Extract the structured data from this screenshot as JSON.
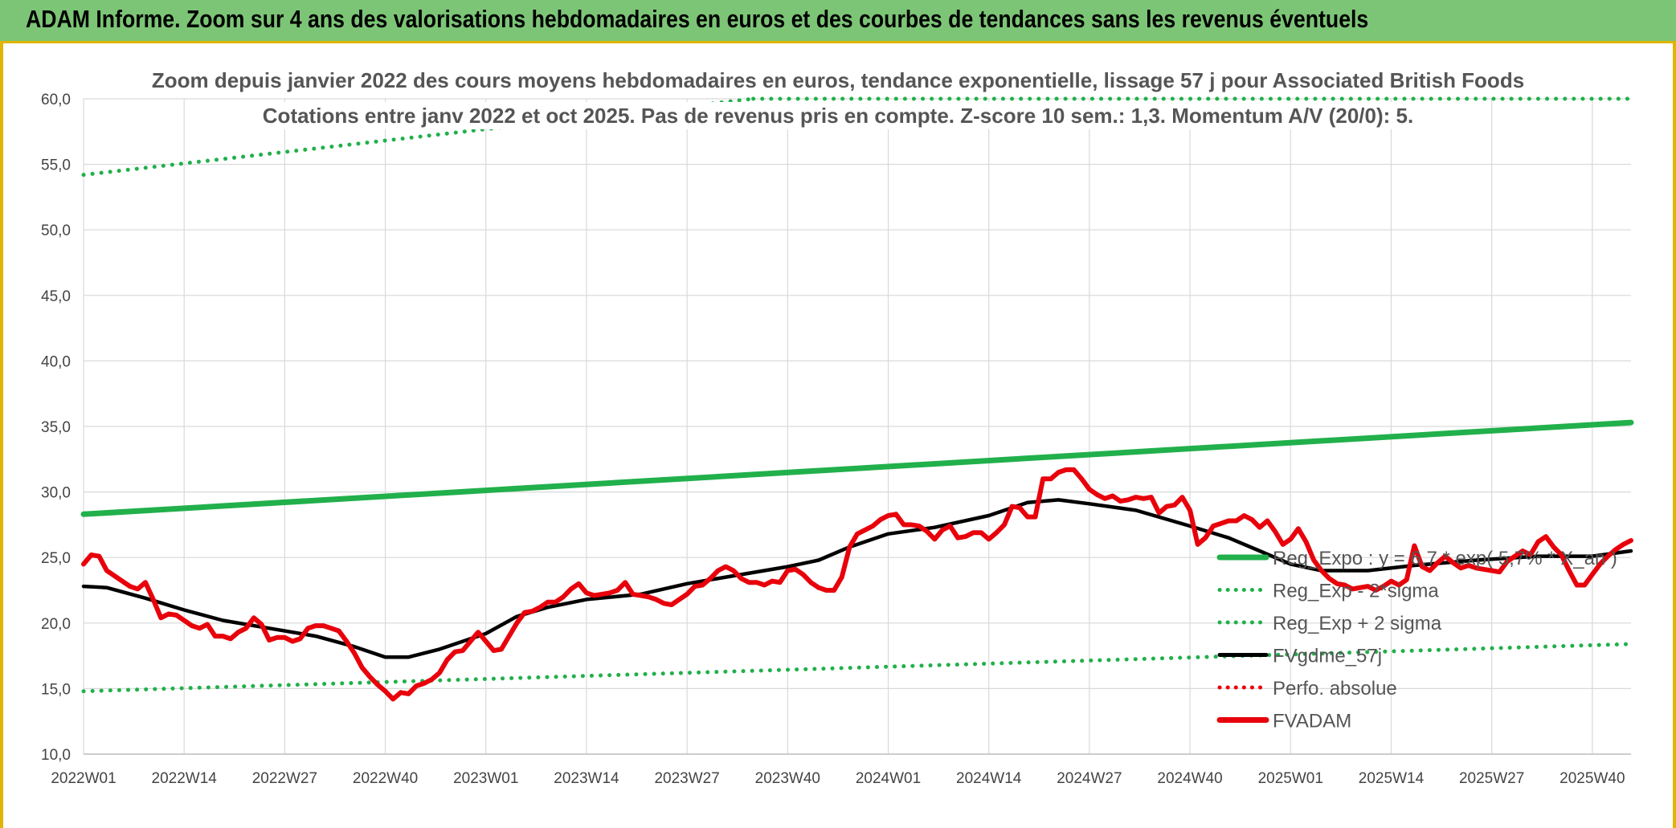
{
  "banner": {
    "title": "ADAM Informe. Zoom sur 4 ans des valorisations hebdomadaires en euros et des courbes de tendances sans les revenus éventuels"
  },
  "colors": {
    "banner_bg": "#7cc576",
    "accent_border": "#e0b400",
    "reg_green": "#21b04b",
    "price_red": "#e8000b",
    "ma_black": "#000000",
    "grid": "#d9d9d9"
  },
  "chart_data": {
    "type": "line",
    "title_lines": [
      "Zoom depuis janvier 2022 des cours moyens hebdomadaires en euros, tendance exponentielle, lissage 57 j pour Associated British Foods",
      "Cotations entre janv 2022 et oct 2025. Pas de revenus pris en compte. Z-score 10 sem.: 1,3. Momentum A/V (20/0): 5."
    ],
    "ylim": [
      10,
      60
    ],
    "y_ticks": [
      "10,0",
      "15,0",
      "20,0",
      "25,0",
      "30,0",
      "35,0",
      "40,0",
      "45,0",
      "50,0",
      "55,0",
      "60,0"
    ],
    "x_tick_labels": [
      "2022W01",
      "2022W14",
      "2022W27",
      "2022W40",
      "2023W01",
      "2023W14",
      "2023W27",
      "2023W40",
      "2024W01",
      "2024W14",
      "2024W27",
      "2024W40",
      "2025W01",
      "2025W14",
      "2025W27",
      "2025W40"
    ],
    "x_tick_index": [
      0,
      13,
      26,
      39,
      52,
      65,
      78,
      91,
      104,
      117,
      130,
      143,
      156,
      169,
      182,
      195
    ],
    "n_weeks": 201,
    "grid": true,
    "legend_position": "bottom-right",
    "legend": [
      {
        "label": "Reg_Expo : y = 6,7 * exp( 5,7% * X_an )",
        "style": "solid",
        "color": "#21b04b"
      },
      {
        "label": "Reg_Exp - 2*sigma",
        "style": "dotted",
        "color": "#21b04b"
      },
      {
        "label": "Reg_Exp + 2 sigma",
        "style": "dotted",
        "color": "#21b04b"
      },
      {
        "label": "FVgdme_57j",
        "style": "solid",
        "color": "#000000"
      },
      {
        "label": "Perfo. absolue",
        "style": "dotted",
        "color": "#e8000b"
      },
      {
        "label": "FVADAM",
        "style": "solid-thick",
        "color": "#e8000b"
      }
    ],
    "series": [
      {
        "name": "Reg_Expo : y = 6,7 * exp( 5,7% * X_an )",
        "points": [
          [
            0,
            28.3
          ],
          [
            200,
            35.3
          ]
        ]
      },
      {
        "name": "Reg_Exp - 2*sigma",
        "points": [
          [
            0,
            14.8
          ],
          [
            200,
            18.4
          ]
        ]
      },
      {
        "name": "Reg_Exp + 2 sigma",
        "points": [
          [
            0,
            54.2
          ],
          [
            200,
            67.6
          ]
        ],
        "clip_top": 60
      },
      {
        "name": "FVgdme_57j",
        "points": [
          [
            0,
            22.8
          ],
          [
            3,
            22.7
          ],
          [
            8,
            21.9
          ],
          [
            13,
            21.0
          ],
          [
            18,
            20.2
          ],
          [
            24,
            19.6
          ],
          [
            30,
            19.0
          ],
          [
            35,
            18.2
          ],
          [
            39,
            17.4
          ],
          [
            42,
            17.4
          ],
          [
            46,
            18.0
          ],
          [
            52,
            19.2
          ],
          [
            56,
            20.5
          ],
          [
            60,
            21.2
          ],
          [
            65,
            21.8
          ],
          [
            72,
            22.2
          ],
          [
            78,
            23.0
          ],
          [
            84,
            23.6
          ],
          [
            91,
            24.3
          ],
          [
            95,
            24.8
          ],
          [
            99,
            25.8
          ],
          [
            104,
            26.8
          ],
          [
            110,
            27.3
          ],
          [
            117,
            28.2
          ],
          [
            122,
            29.2
          ],
          [
            126,
            29.4
          ],
          [
            130,
            29.1
          ],
          [
            136,
            28.6
          ],
          [
            143,
            27.4
          ],
          [
            148,
            26.5
          ],
          [
            152,
            25.5
          ],
          [
            156,
            24.5
          ],
          [
            160,
            24.0
          ],
          [
            166,
            24.0
          ],
          [
            172,
            24.4
          ],
          [
            180,
            24.8
          ],
          [
            188,
            25.1
          ],
          [
            195,
            25.1
          ],
          [
            200,
            25.5
          ]
        ]
      },
      {
        "name": "FVADAM",
        "points": [
          [
            0,
            24.5
          ],
          [
            1,
            25.2
          ],
          [
            2,
            25.1
          ],
          [
            3,
            24.0
          ],
          [
            5,
            23.2
          ],
          [
            6,
            22.8
          ],
          [
            7,
            22.6
          ],
          [
            8,
            23.1
          ],
          [
            9,
            21.8
          ],
          [
            10,
            20.4
          ],
          [
            11,
            20.7
          ],
          [
            12,
            20.6
          ],
          [
            13,
            20.2
          ],
          [
            14,
            19.8
          ],
          [
            15,
            19.6
          ],
          [
            16,
            19.9
          ],
          [
            17,
            19.0
          ],
          [
            18,
            19.0
          ],
          [
            19,
            18.8
          ],
          [
            20,
            19.3
          ],
          [
            21,
            19.6
          ],
          [
            22,
            20.4
          ],
          [
            23,
            19.9
          ],
          [
            24,
            18.7
          ],
          [
            25,
            18.9
          ],
          [
            26,
            18.9
          ],
          [
            27,
            18.6
          ],
          [
            28,
            18.8
          ],
          [
            29,
            19.6
          ],
          [
            30,
            19.8
          ],
          [
            31,
            19.8
          ],
          [
            32,
            19.6
          ],
          [
            33,
            19.4
          ],
          [
            34,
            18.6
          ],
          [
            35,
            17.7
          ],
          [
            36,
            16.6
          ],
          [
            37,
            15.9
          ],
          [
            38,
            15.3
          ],
          [
            39,
            14.8
          ],
          [
            40,
            14.2
          ],
          [
            41,
            14.7
          ],
          [
            42,
            14.6
          ],
          [
            43,
            15.2
          ],
          [
            44,
            15.4
          ],
          [
            45,
            15.7
          ],
          [
            46,
            16.2
          ],
          [
            47,
            17.2
          ],
          [
            48,
            17.8
          ],
          [
            49,
            17.9
          ],
          [
            50,
            18.6
          ],
          [
            51,
            19.3
          ],
          [
            52,
            18.6
          ],
          [
            53,
            17.9
          ],
          [
            54,
            18.0
          ],
          [
            55,
            19.0
          ],
          [
            56,
            20.0
          ],
          [
            57,
            20.8
          ],
          [
            58,
            20.9
          ],
          [
            59,
            21.2
          ],
          [
            60,
            21.6
          ],
          [
            61,
            21.6
          ],
          [
            62,
            22.0
          ],
          [
            63,
            22.6
          ],
          [
            64,
            23.0
          ],
          [
            65,
            22.3
          ],
          [
            66,
            22.1
          ],
          [
            67,
            22.2
          ],
          [
            68,
            22.3
          ],
          [
            69,
            22.5
          ],
          [
            70,
            23.1
          ],
          [
            71,
            22.2
          ],
          [
            72,
            22.1
          ],
          [
            73,
            22.0
          ],
          [
            74,
            21.8
          ],
          [
            75,
            21.5
          ],
          [
            76,
            21.4
          ],
          [
            77,
            21.8
          ],
          [
            78,
            22.2
          ],
          [
            79,
            22.8
          ],
          [
            80,
            22.9
          ],
          [
            81,
            23.4
          ],
          [
            82,
            24.0
          ],
          [
            83,
            24.3
          ],
          [
            84,
            24.0
          ],
          [
            85,
            23.4
          ],
          [
            86,
            23.1
          ],
          [
            87,
            23.1
          ],
          [
            88,
            22.9
          ],
          [
            89,
            23.2
          ],
          [
            90,
            23.1
          ],
          [
            91,
            24.0
          ],
          [
            92,
            24.1
          ],
          [
            93,
            23.7
          ],
          [
            94,
            23.1
          ],
          [
            95,
            22.7
          ],
          [
            96,
            22.5
          ],
          [
            97,
            22.5
          ],
          [
            98,
            23.5
          ],
          [
            99,
            25.8
          ],
          [
            100,
            26.8
          ],
          [
            101,
            27.1
          ],
          [
            102,
            27.4
          ],
          [
            103,
            27.9
          ],
          [
            104,
            28.2
          ],
          [
            105,
            28.3
          ],
          [
            106,
            27.5
          ],
          [
            107,
            27.5
          ],
          [
            108,
            27.4
          ],
          [
            109,
            27.0
          ],
          [
            110,
            26.4
          ],
          [
            111,
            27.1
          ],
          [
            112,
            27.4
          ],
          [
            113,
            26.5
          ],
          [
            114,
            26.6
          ],
          [
            115,
            26.9
          ],
          [
            116,
            26.9
          ],
          [
            117,
            26.4
          ],
          [
            118,
            26.9
          ],
          [
            119,
            27.5
          ],
          [
            120,
            28.9
          ],
          [
            121,
            28.8
          ],
          [
            122,
            28.1
          ],
          [
            123,
            28.1
          ],
          [
            124,
            31.0
          ],
          [
            125,
            31.0
          ],
          [
            126,
            31.5
          ],
          [
            127,
            31.7
          ],
          [
            128,
            31.7
          ],
          [
            129,
            31.0
          ],
          [
            130,
            30.2
          ],
          [
            131,
            29.8
          ],
          [
            132,
            29.5
          ],
          [
            133,
            29.7
          ],
          [
            134,
            29.3
          ],
          [
            135,
            29.4
          ],
          [
            136,
            29.6
          ],
          [
            137,
            29.5
          ],
          [
            138,
            29.6
          ],
          [
            139,
            28.4
          ],
          [
            140,
            28.9
          ],
          [
            141,
            29.0
          ],
          [
            142,
            29.6
          ],
          [
            143,
            28.6
          ],
          [
            144,
            26.0
          ],
          [
            145,
            26.5
          ],
          [
            146,
            27.4
          ],
          [
            147,
            27.6
          ],
          [
            148,
            27.8
          ],
          [
            149,
            27.8
          ],
          [
            150,
            28.2
          ],
          [
            151,
            27.9
          ],
          [
            152,
            27.3
          ],
          [
            153,
            27.8
          ],
          [
            154,
            27.0
          ],
          [
            155,
            26.0
          ],
          [
            156,
            26.4
          ],
          [
            157,
            27.2
          ],
          [
            158,
            26.2
          ],
          [
            159,
            24.8
          ],
          [
            160,
            24.0
          ],
          [
            161,
            23.4
          ],
          [
            162,
            23.0
          ],
          [
            163,
            22.9
          ],
          [
            164,
            22.6
          ],
          [
            165,
            22.7
          ],
          [
            166,
            22.8
          ],
          [
            167,
            22.5
          ],
          [
            168,
            22.8
          ],
          [
            169,
            23.2
          ],
          [
            170,
            22.9
          ],
          [
            171,
            23.3
          ],
          [
            172,
            25.9
          ],
          [
            173,
            24.3
          ],
          [
            174,
            24.0
          ],
          [
            175,
            24.6
          ],
          [
            176,
            25.1
          ],
          [
            177,
            24.6
          ],
          [
            178,
            24.2
          ],
          [
            179,
            24.4
          ],
          [
            180,
            24.2
          ],
          [
            181,
            24.1
          ],
          [
            182,
            24.0
          ],
          [
            183,
            23.9
          ],
          [
            184,
            24.7
          ],
          [
            185,
            25.1
          ],
          [
            186,
            25.5
          ],
          [
            187,
            25.2
          ],
          [
            188,
            26.2
          ],
          [
            189,
            26.6
          ],
          [
            190,
            25.8
          ],
          [
            191,
            25.2
          ],
          [
            192,
            24.0
          ],
          [
            193,
            22.9
          ],
          [
            194,
            22.9
          ],
          [
            195,
            23.7
          ],
          [
            196,
            24.5
          ],
          [
            197,
            25.1
          ],
          [
            198,
            25.6
          ],
          [
            199,
            26.0
          ],
          [
            200,
            26.3
          ]
        ]
      }
    ]
  }
}
